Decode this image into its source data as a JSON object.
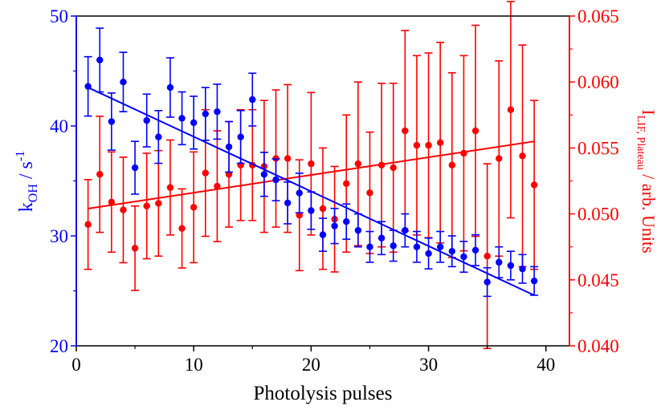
{
  "chart_data": {
    "type": "scatter",
    "xlabel": "Photolysis pulses",
    "xlim": [
      0,
      42
    ],
    "xticks": [
      0,
      10,
      20,
      30,
      40
    ],
    "left_axis": {
      "label_main": "k",
      "label_sub": "OH",
      "label_rest": " / s",
      "label_sup": "-1",
      "ylim": [
        20,
        50
      ],
      "ticks": [
        "20",
        "30",
        "40",
        "50"
      ],
      "color": "#0000ff"
    },
    "right_axis": {
      "label_main": "I",
      "label_sub": "LIF, Plateau",
      "label_rest": " / arb. Units",
      "ylim": [
        0.04,
        0.065
      ],
      "ticks": [
        "0.040",
        "0.045",
        "0.050",
        "0.055",
        "0.060",
        "0.065"
      ],
      "color": "#ff0000"
    },
    "series": [
      {
        "axis": "left",
        "color": "#0000ff",
        "x": [
          1,
          2,
          3,
          4,
          5,
          6,
          7,
          8,
          9,
          10,
          11,
          12,
          13,
          14,
          15,
          16,
          17,
          18,
          19,
          20,
          21,
          22,
          23,
          24,
          25,
          26,
          27,
          28,
          29,
          30,
          31,
          32,
          33,
          34,
          35,
          36,
          37,
          38,
          39
        ],
        "y": [
          43.6,
          46.0,
          40.4,
          44.0,
          36.2,
          40.5,
          39.0,
          43.5,
          40.7,
          40.3,
          41.1,
          41.3,
          38.1,
          39.0,
          42.4,
          35.6,
          35.1,
          33.0,
          33.9,
          32.3,
          30.1,
          30.9,
          31.3,
          30.5,
          29.0,
          29.8,
          29.1,
          30.5,
          29.0,
          28.4,
          29.0,
          28.6,
          28.1,
          28.7,
          25.8,
          27.6,
          27.3,
          27.0,
          25.9
        ],
        "err": [
          2.7,
          2.9,
          2.6,
          2.7,
          2.4,
          2.4,
          2.4,
          2.7,
          2.4,
          2.4,
          2.4,
          2.5,
          2.3,
          2.4,
          2.4,
          2.0,
          1.9,
          1.9,
          1.8,
          1.7,
          1.5,
          1.6,
          1.6,
          1.5,
          1.4,
          1.5,
          1.4,
          1.5,
          1.4,
          1.4,
          1.4,
          1.4,
          1.4,
          1.4,
          1.3,
          1.4,
          1.3,
          1.3,
          1.3
        ],
        "fit": {
          "x": [
            1,
            39
          ],
          "y": [
            43.5,
            24.6
          ]
        }
      },
      {
        "axis": "right",
        "color": "#ff0000",
        "x": [
          1,
          2,
          3,
          4,
          5,
          6,
          7,
          8,
          9,
          10,
          11,
          12,
          13,
          14,
          15,
          16,
          17,
          18,
          19,
          20,
          21,
          22,
          23,
          24,
          25,
          26,
          27,
          28,
          29,
          30,
          31,
          32,
          33,
          34,
          35,
          36,
          37,
          38,
          39
        ],
        "y": [
          0.0492,
          0.053,
          0.0509,
          0.0503,
          0.0474,
          0.0506,
          0.0508,
          0.052,
          0.0489,
          0.0505,
          0.0531,
          0.0521,
          0.053,
          0.0537,
          0.0537,
          0.0536,
          0.0542,
          0.0542,
          0.0499,
          0.0538,
          0.0504,
          0.0496,
          0.0523,
          0.0538,
          0.0516,
          0.0537,
          0.0535,
          0.0563,
          0.0552,
          0.0552,
          0.0554,
          0.0537,
          0.0546,
          0.0563,
          0.0468,
          0.0542,
          0.0579,
          0.0544,
          0.0522
        ],
        "err": [
          0.0034,
          0.0044,
          0.0038,
          0.004,
          0.0032,
          0.004,
          0.004,
          0.0036,
          0.003,
          0.0042,
          0.0048,
          0.0042,
          0.004,
          0.0042,
          0.0042,
          0.005,
          0.0052,
          0.0056,
          0.0042,
          0.0054,
          0.0046,
          0.004,
          0.0052,
          0.0062,
          0.0046,
          0.0062,
          0.0064,
          0.0076,
          0.0068,
          0.007,
          0.0076,
          0.007,
          0.0074,
          0.008,
          0.007,
          0.0074,
          0.0082,
          0.0084,
          0.0064
        ],
        "fit": {
          "x": [
            1,
            39
          ],
          "y": [
            0.0504,
            0.0555
          ]
        }
      }
    ]
  }
}
